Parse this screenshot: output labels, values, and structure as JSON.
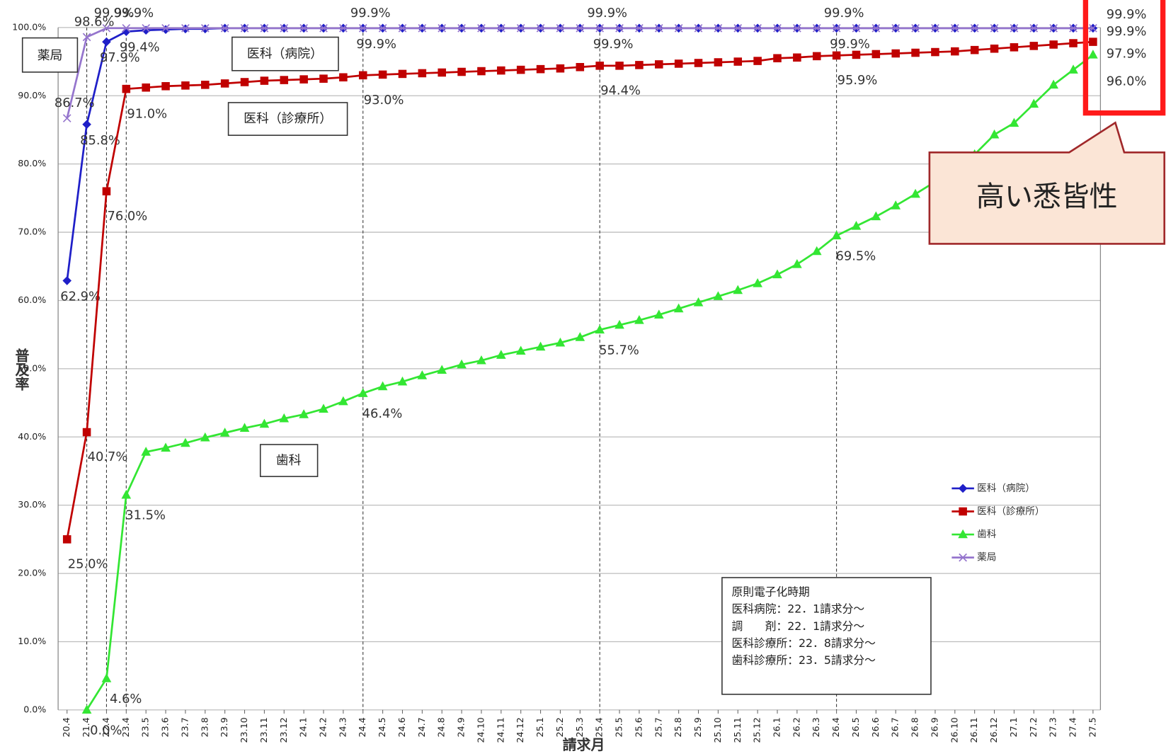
{
  "chart_data": {
    "type": "line",
    "ylabel": "普及率",
    "xlabel": "請求月",
    "categories": [
      "20.4",
      "21.4",
      "22.4",
      "23.4",
      "23.5",
      "23.6",
      "23.7",
      "23.8",
      "23.9",
      "23.10",
      "23.11",
      "23.12",
      "24.1",
      "24.2",
      "24.3",
      "24.4",
      "24.5",
      "24.6",
      "24.7",
      "24.8",
      "24.9",
      "24.10",
      "24.11",
      "24.12",
      "25.1",
      "25.2",
      "25.3",
      "25.4",
      "25.5",
      "25.6",
      "25.7",
      "25.8",
      "25.9",
      "25.10",
      "25.11",
      "25.12",
      "26.1",
      "26.2",
      "26.3",
      "26.4",
      "26.5",
      "26.6",
      "26.7",
      "26.8",
      "26.9",
      "26.10",
      "26.11",
      "26.12",
      "27.1",
      "27.2",
      "27.3",
      "27.4",
      "27.5"
    ],
    "ylim": [
      0,
      100
    ],
    "yticks": [
      {
        "value": 0,
        "label": "0.0%"
      },
      {
        "value": 10,
        "label": "10.0%"
      },
      {
        "value": 20,
        "label": "20.0%"
      },
      {
        "value": 30,
        "label": "30.0%"
      },
      {
        "value": 40,
        "label": "40.0%"
      },
      {
        "value": 50,
        "label": "50.0%"
      },
      {
        "value": 60,
        "label": "60.0%"
      },
      {
        "value": 70,
        "label": "70.0%"
      },
      {
        "value": 80,
        "label": "80.0%"
      },
      {
        "value": 90,
        "label": "90.0%"
      },
      {
        "value": 100,
        "label": "100.0%"
      }
    ],
    "grid": true,
    "dashed_lines_at": [
      "21.4",
      "22.4",
      "23.4",
      "24.4",
      "25.4",
      "26.4"
    ],
    "legend": "right",
    "series": [
      {
        "name": "医科（病院）",
        "color": "#1f1fc8",
        "marker": "diamond",
        "values": [
          62.9,
          85.8,
          97.9,
          99.4,
          99.6,
          99.7,
          99.8,
          99.8,
          99.9,
          99.9,
          99.9,
          99.9,
          99.9,
          99.9,
          99.9,
          99.9,
          99.9,
          99.9,
          99.9,
          99.9,
          99.9,
          99.9,
          99.9,
          99.9,
          99.9,
          99.9,
          99.9,
          99.9,
          99.9,
          99.9,
          99.9,
          99.9,
          99.9,
          99.9,
          99.9,
          99.9,
          99.9,
          99.9,
          99.9,
          99.9,
          99.9,
          99.9,
          99.9,
          99.9,
          99.9,
          99.9,
          99.9,
          99.9,
          99.9,
          99.9,
          99.9,
          99.9,
          99.9
        ],
        "value_labels": [
          "62.9%",
          "85.8%",
          "97.9%",
          "99.4%",
          null,
          null,
          null,
          null,
          null,
          null,
          null,
          null,
          null,
          null,
          null,
          "99.9%",
          null,
          null,
          null,
          null,
          null,
          null,
          null,
          null,
          null,
          null,
          null,
          "99.9%",
          null,
          null,
          null,
          null,
          null,
          null,
          null,
          null,
          null,
          null,
          null,
          "99.9%",
          null,
          null,
          null,
          null,
          null,
          null,
          null,
          null,
          null,
          null,
          null,
          null,
          "99.9%"
        ]
      },
      {
        "name": "医科（診療所）",
        "color": "#c00000",
        "marker": "square",
        "values": [
          25.0,
          40.7,
          76.0,
          91.0,
          91.2,
          91.4,
          91.5,
          91.6,
          91.8,
          92.0,
          92.2,
          92.3,
          92.4,
          92.5,
          92.7,
          93.0,
          93.1,
          93.2,
          93.3,
          93.4,
          93.5,
          93.6,
          93.7,
          93.8,
          93.9,
          94.0,
          94.2,
          94.4,
          94.4,
          94.5,
          94.6,
          94.7,
          94.8,
          94.9,
          95.0,
          95.1,
          95.5,
          95.6,
          95.8,
          95.9,
          96.0,
          96.1,
          96.2,
          96.3,
          96.4,
          96.5,
          96.7,
          96.9,
          97.1,
          97.3,
          97.5,
          97.7,
          97.9
        ],
        "value_labels": [
          "25.0%",
          "40.7%",
          "76.0%",
          "91.0%",
          null,
          null,
          null,
          null,
          null,
          null,
          null,
          null,
          null,
          null,
          null,
          "93.0%",
          null,
          null,
          null,
          null,
          null,
          null,
          null,
          null,
          null,
          null,
          null,
          "94.4%",
          null,
          null,
          null,
          null,
          null,
          null,
          null,
          null,
          null,
          null,
          null,
          "95.9%",
          null,
          null,
          null,
          null,
          null,
          null,
          null,
          null,
          null,
          null,
          null,
          null,
          "97.9%"
        ]
      },
      {
        "name": "歯科",
        "color": "#33e633",
        "marker": "triangle",
        "values": [
          null,
          0.0,
          4.6,
          31.5,
          37.8,
          38.4,
          39.1,
          39.9,
          40.6,
          41.3,
          41.9,
          42.7,
          43.3,
          44.1,
          45.2,
          46.4,
          47.4,
          48.1,
          49.0,
          49.8,
          50.6,
          51.2,
          52.0,
          52.6,
          53.2,
          53.8,
          54.6,
          55.7,
          56.4,
          57.1,
          57.9,
          58.8,
          59.7,
          60.6,
          61.5,
          62.5,
          63.8,
          65.3,
          67.2,
          69.5,
          70.9,
          72.3,
          73.9,
          75.6,
          77.4,
          79.3,
          81.4,
          84.3,
          86.0,
          88.8,
          91.6,
          93.8,
          96.0
        ],
        "value_labels": [
          null,
          "0.0%",
          "4.6%",
          "31.5%",
          null,
          null,
          null,
          null,
          null,
          null,
          null,
          null,
          null,
          null,
          null,
          "46.4%",
          null,
          null,
          null,
          null,
          null,
          null,
          null,
          null,
          null,
          null,
          null,
          "55.7%",
          null,
          null,
          null,
          null,
          null,
          null,
          null,
          null,
          null,
          null,
          null,
          "69.5%",
          null,
          null,
          null,
          null,
          null,
          null,
          null,
          null,
          null,
          null,
          null,
          null,
          "96.0%"
        ]
      },
      {
        "name": "薬局",
        "color": "#9575cd",
        "marker": "x",
        "values": [
          86.7,
          98.6,
          99.9,
          99.9,
          99.9,
          99.9,
          99.9,
          99.9,
          99.9,
          99.9,
          99.9,
          99.9,
          99.9,
          99.9,
          99.9,
          99.9,
          99.9,
          99.9,
          99.9,
          99.9,
          99.9,
          99.9,
          99.9,
          99.9,
          99.9,
          99.9,
          99.9,
          99.9,
          99.9,
          99.9,
          99.9,
          99.9,
          99.9,
          99.9,
          99.9,
          99.9,
          99.9,
          99.9,
          99.9,
          99.9,
          99.9,
          99.9,
          99.9,
          99.9,
          99.9,
          99.9,
          99.9,
          99.9,
          99.9,
          99.9,
          99.9,
          99.9,
          99.9
        ],
        "value_labels": [
          "86.7%",
          "98.6%",
          "99.9%",
          "99.9%",
          null,
          null,
          null,
          null,
          null,
          null,
          null,
          null,
          null,
          null,
          null,
          "99.9%",
          null,
          null,
          null,
          null,
          null,
          null,
          null,
          null,
          null,
          null,
          null,
          "99.9%",
          null,
          null,
          null,
          null,
          null,
          null,
          null,
          null,
          null,
          null,
          null,
          "99.9%",
          null,
          null,
          null,
          null,
          null,
          null,
          null,
          null,
          null,
          null,
          null,
          null,
          "99.9%"
        ]
      }
    ],
    "note": {
      "title": "原則電子化時期",
      "lines": [
        "医科病院：22．1請求分～",
        "調　　剤：22．1請求分～",
        "医科診療所：22．8請求分～",
        "歯科診療所：23．5請求分～"
      ]
    },
    "callout": "高い悉皆性"
  }
}
